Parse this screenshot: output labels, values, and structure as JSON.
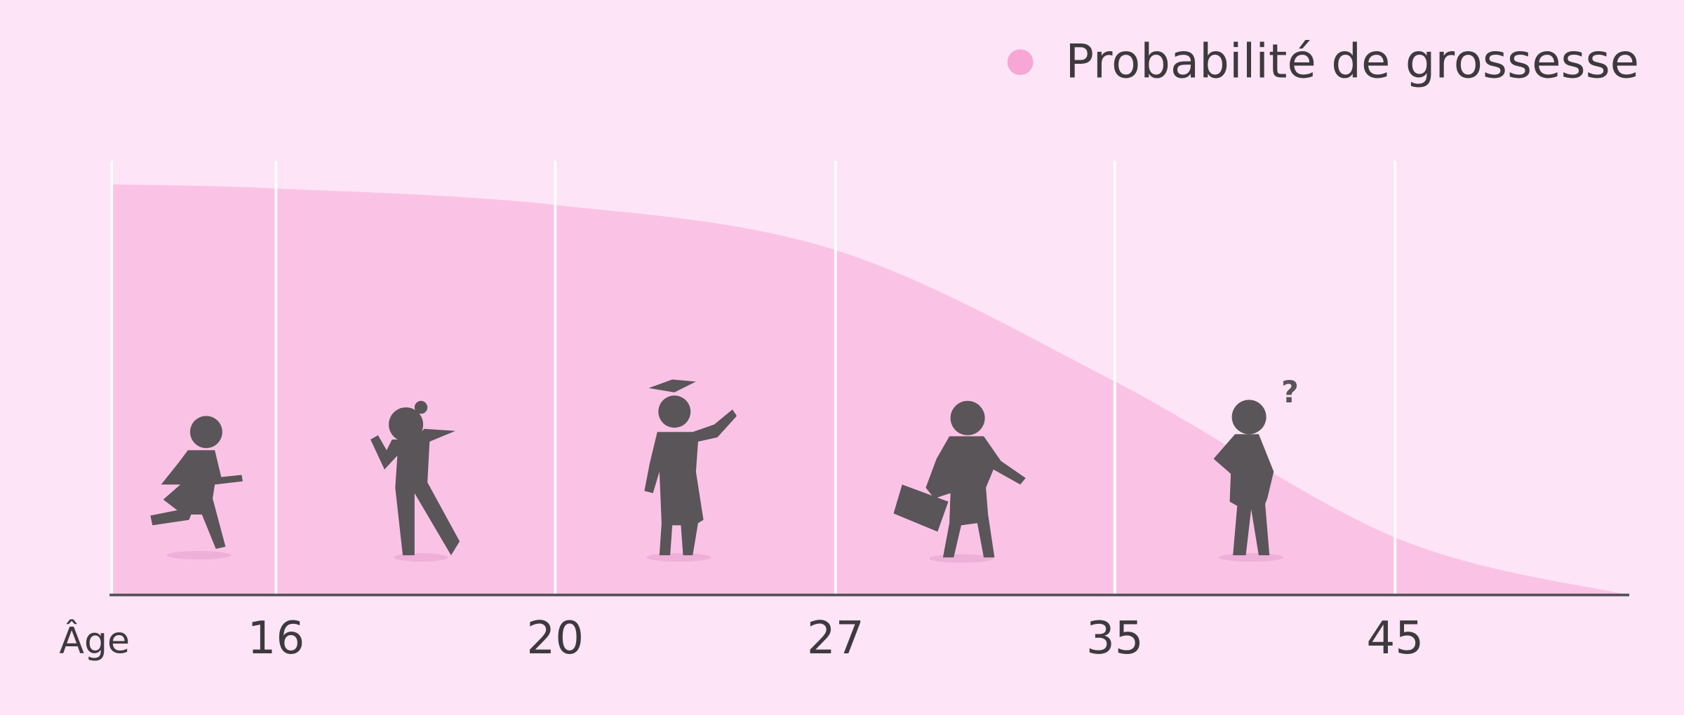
{
  "chart_data": {
    "type": "area",
    "x_label": "Âge",
    "categories": [
      null,
      "16",
      "20",
      "27",
      "35",
      "45",
      null
    ],
    "series": [
      {
        "name": "Probabilité de grossesse",
        "color": "#fac3e6",
        "legend_color": "#f7a6d5",
        "values": [
          100,
          99,
          95,
          84,
          52,
          14,
          0
        ]
      }
    ],
    "ylim": [
      0,
      100
    ],
    "grid": true,
    "legend": "top-right"
  }
}
